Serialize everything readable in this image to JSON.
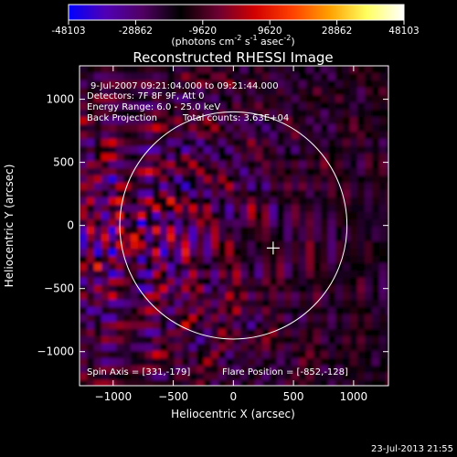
{
  "colorbar": {
    "ticks": [
      "-48103",
      "-28862",
      "-9620",
      "9620",
      "28862",
      "48103"
    ],
    "tick_values": [
      -48103,
      -28862,
      -9620,
      9620,
      28862,
      48103
    ],
    "min": -48103,
    "max": 48103,
    "unit_base": "(photons cm",
    "unit_sup1": "-2",
    "unit_mid": " s",
    "unit_sup2": "-1",
    "unit_asec": " asec",
    "unit_sup3": "-2",
    "unit_close": ")"
  },
  "annotations": {
    "time_range": "9-Jul-2007 09:21:04.000 to 09:21:44.000",
    "detectors": "Detectors: 7F 8F 9F, Att 0",
    "energy": "Energy Range: 6.0 - 25.0 keV",
    "method": "Back Projection",
    "counts": "Total counts: 3.63E+04",
    "spin_axis": "Spin Axis = [331,-179]",
    "flare_position": "Flare Position = [-852,-128]"
  },
  "footer": {
    "timestamp": "23-Jul-2013 21:55"
  },
  "chart_data": {
    "type": "heatmap",
    "title": "Reconstructed RHESSI Image",
    "xlabel": "Heliocentric X (arcsec)",
    "ylabel": "Heliocentric Y (arcsec)",
    "xlim": [
      -1280,
      1290
    ],
    "ylim": [
      -1270,
      1265
    ],
    "x_ticks": [
      -1000,
      -500,
      0,
      500,
      1000
    ],
    "y_ticks": [
      -1000,
      -500,
      0,
      500,
      1000
    ],
    "x_tick_labels": [
      "−1000",
      "−500",
      "0",
      "500",
      "1000"
    ],
    "y_tick_labels": [
      "−1000",
      "−500",
      "0",
      "500",
      "1000"
    ],
    "solar_limb_radius_arcsec": 945,
    "solar_limb_center": [
      0,
      0
    ],
    "flare_source": [
      -852,
      -128
    ],
    "spin_axis": [
      331,
      -179
    ],
    "colorscale": [
      "#0000ff",
      "#5000b4",
      "#500060",
      "#000000",
      "#6a0030",
      "#d20000",
      "#ff4000",
      "#ffa000",
      "#ffff60",
      "#ffffff"
    ]
  }
}
